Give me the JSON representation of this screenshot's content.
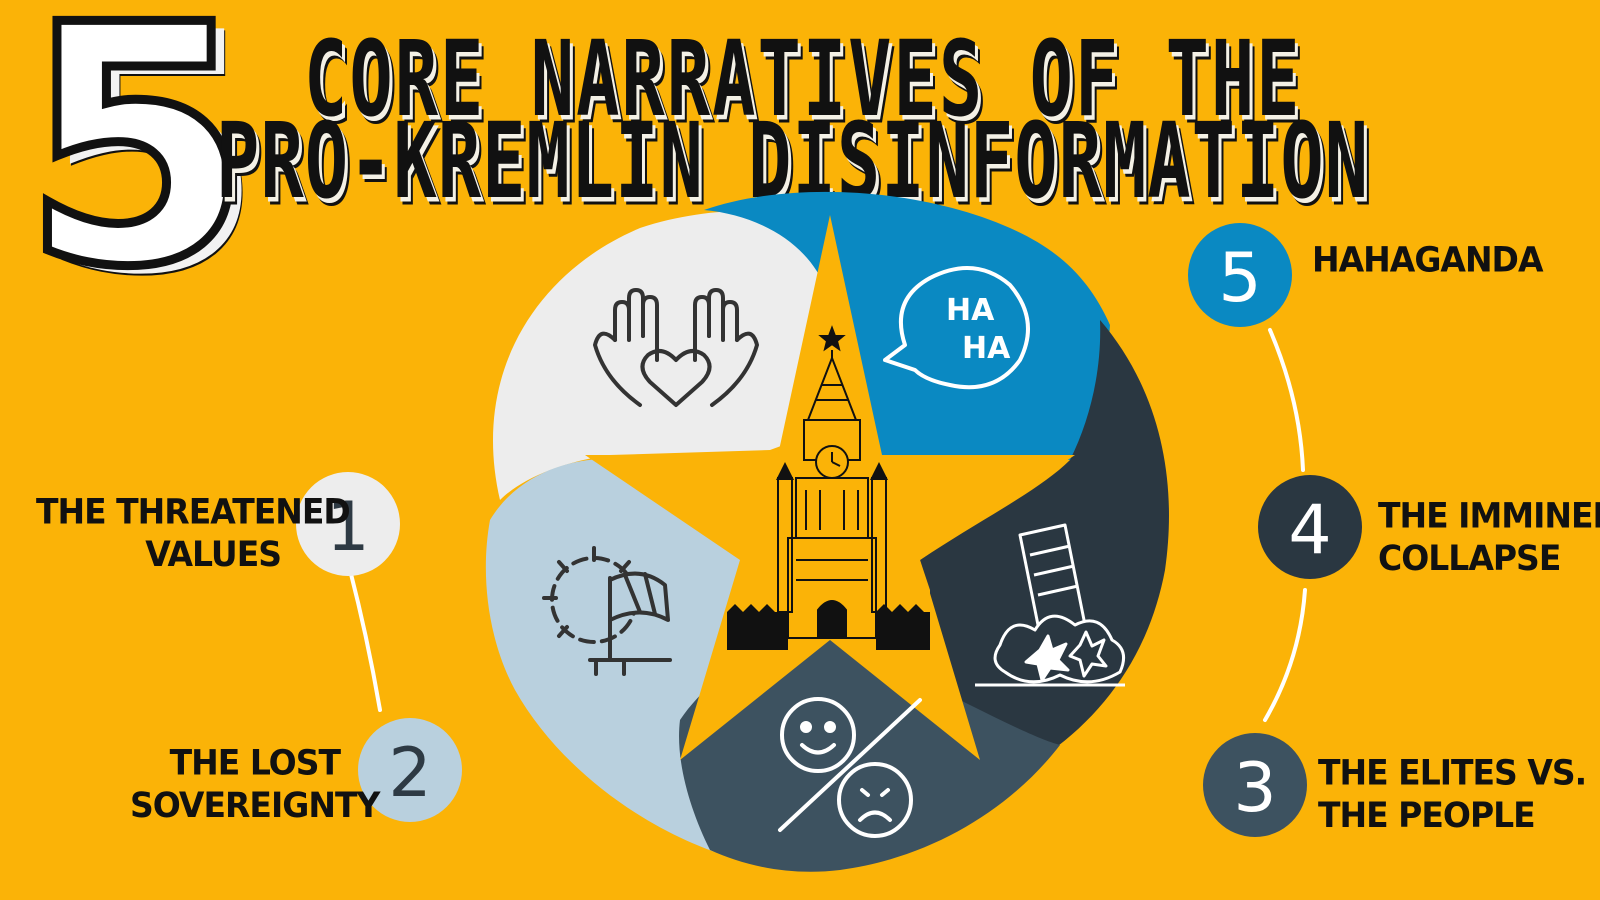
{
  "header": {
    "big_number": "5",
    "title_line1": "CORE NARRATIVES OF THE",
    "title_line2": "PRO-KREMLIN DISINFORMATION"
  },
  "narratives": [
    {
      "number": "1",
      "label_line1": "THE THREATENED",
      "label_line2": "VALUES",
      "color": "#EDEDED",
      "number_color": "#2E3A44",
      "icon": "hands-heart-icon"
    },
    {
      "number": "2",
      "label_line1": "THE LOST",
      "label_line2": "SOVEREIGNTY",
      "color": "#B9D0DE",
      "number_color": "#2E3A44",
      "icon": "gear-flag-icon"
    },
    {
      "number": "3",
      "label_line1": "THE ELITES VS.",
      "label_line2": "THE PEOPLE",
      "color": "#3D5260",
      "number_color": "#FFFFFF",
      "icon": "happy-sad-faces-icon"
    },
    {
      "number": "4",
      "label_line1": "THE IMMINENT",
      "label_line2": "COLLAPSE",
      "color": "#2A3741",
      "number_color": "#FFFFFF",
      "icon": "collapsing-building-icon"
    },
    {
      "number": "5",
      "label_line1": "HAHAGANDA",
      "label_line2": "",
      "color": "#0A89C2",
      "number_color": "#FFFFFF",
      "icon": "ha-ha-speech-bubble-icon"
    }
  ],
  "icon_text": {
    "ha1": "HA",
    "ha2": "HA"
  },
  "center_icon": "kremlin-tower-icon",
  "colors": {
    "background": "#FBB307",
    "star": "#FBB307",
    "connector": "#FFFFFF"
  }
}
